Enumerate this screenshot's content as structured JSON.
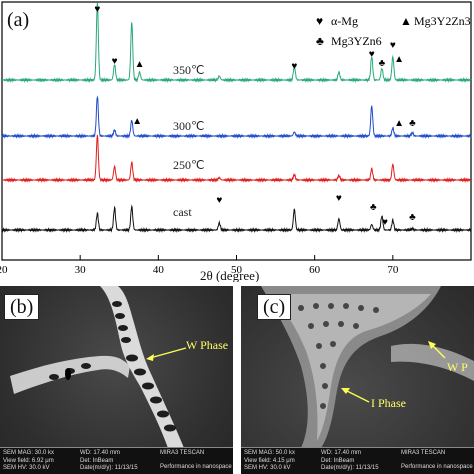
{
  "xrd": {
    "panel_label": "(a)",
    "legend": {
      "heart_label": "α-Mg",
      "triangle_label": "Mg3Y2Zn3",
      "club_label": "Mg3YZn6"
    },
    "curve_labels": [
      "350℃",
      "300℃",
      "250℃",
      "cast"
    ],
    "curve_colors": [
      "#2aa878",
      "#1f4ec8",
      "#e11d1d",
      "#111111"
    ],
    "xlabel": "2θ (degree)",
    "x_ticks": [
      "20",
      "30",
      "40",
      "50",
      "60",
      "70"
    ]
  },
  "chart_data": {
    "type": "line",
    "xlabel": "2θ (degree)",
    "ylabel": "",
    "xlim": [
      20,
      80
    ],
    "series": [
      {
        "name": "350℃",
        "peaks": [
          [
            32.2,
            1.0
          ],
          [
            34.4,
            0.2
          ],
          [
            36.6,
            0.75
          ],
          [
            37.6,
            0.1
          ],
          [
            47.8,
            0.05
          ],
          [
            57.4,
            0.18
          ],
          [
            63.1,
            0.1
          ],
          [
            67.3,
            0.3
          ],
          [
            68.6,
            0.15
          ],
          [
            70.0,
            0.3
          ]
        ]
      },
      {
        "name": "300℃",
        "peaks": [
          [
            32.2,
            1.0
          ],
          [
            34.4,
            0.15
          ],
          [
            36.6,
            0.4
          ],
          [
            57.4,
            0.1
          ],
          [
            67.3,
            0.75
          ],
          [
            70.0,
            0.2
          ],
          [
            72.5,
            0.08
          ]
        ]
      },
      {
        "name": "250℃",
        "peaks": [
          [
            32.2,
            1.0
          ],
          [
            34.4,
            0.3
          ],
          [
            36.6,
            0.4
          ],
          [
            47.8,
            0.05
          ],
          [
            57.4,
            0.12
          ],
          [
            63.1,
            0.1
          ],
          [
            67.3,
            0.25
          ],
          [
            70.0,
            0.35
          ]
        ]
      },
      {
        "name": "cast",
        "peaks": [
          [
            32.2,
            0.6
          ],
          [
            34.4,
            0.8
          ],
          [
            36.6,
            0.85
          ],
          [
            47.8,
            0.25
          ],
          [
            57.4,
            0.75
          ],
          [
            63.1,
            0.4
          ],
          [
            67.3,
            0.2
          ],
          [
            68.6,
            0.5
          ],
          [
            70.0,
            0.35
          ],
          [
            72.5,
            0.05
          ]
        ]
      }
    ],
    "grid": false,
    "legend_position": "top-right"
  },
  "sem_b": {
    "panel_label": "(b)",
    "annotation": "W Phase",
    "footer": [
      "SEM MAG: 30.0 kx",
      "WD: 17.40 mm",
      "MIRA3 TESCAN",
      "Det: InBeam",
      "Performance in nanospace",
      "View field: 6.92 μm",
      "SEM HV: 30.0 kV",
      "Date(m/d/y): 11/13/15"
    ]
  },
  "sem_c": {
    "panel_label": "(c)",
    "annotations": [
      "W P",
      "I Phase"
    ],
    "footer": [
      "SEM MAG: 50.0 kx",
      "WD: 17.40 mm",
      "MIRA3 TESCAN",
      "Det: InBeam",
      "Performance in nanospace",
      "View field: 4.15 μm",
      "SEM HV: 30.0 kV",
      "Date(m/d/y): 11/13/15"
    ]
  }
}
